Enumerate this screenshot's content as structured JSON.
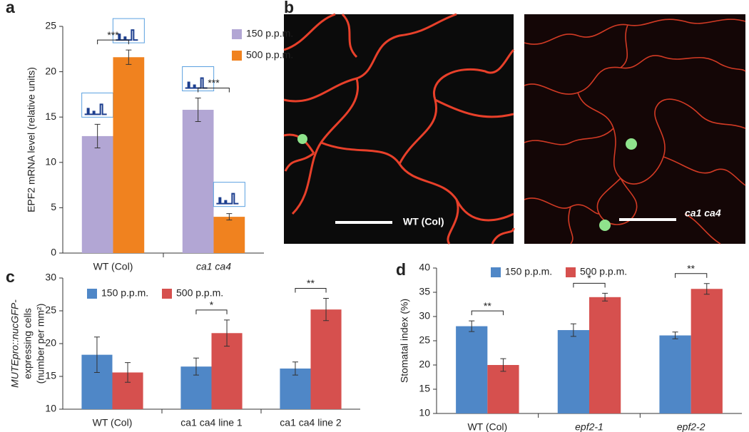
{
  "chart_data": [
    {
      "type": "bar",
      "panel": "a",
      "ylabel": "EPF2 mRNA level (relative units)",
      "categories": [
        "WT (Col)",
        "ca1 ca4"
      ],
      "series": [
        {
          "name": "150 p.p.m.",
          "color": "#b2a6d4",
          "values": [
            12.9,
            15.8
          ],
          "errors": [
            1.3,
            1.3
          ]
        },
        {
          "name": "500 p.p.m.",
          "color": "#f0821f",
          "values": [
            21.6,
            4.0
          ],
          "errors": [
            0.8,
            0.35
          ]
        }
      ],
      "significance": [
        "***",
        "***"
      ],
      "ylim": [
        0,
        25
      ],
      "yticks": [
        0,
        5,
        10,
        15,
        20,
        25
      ],
      "legend": "top-right"
    },
    {
      "type": "bar",
      "panel": "c",
      "ylabel": [
        "MUTEpro::nucGFP-",
        "expressing cells",
        "(number per mm²)"
      ],
      "categories": [
        "WT (Col)",
        "ca1 ca4 line 1",
        "ca1 ca4 line 2"
      ],
      "series": [
        {
          "name": "150 p.p.m.",
          "color": "#4f87c7",
          "values": [
            18.3,
            16.5,
            16.2
          ],
          "errors": [
            2.7,
            1.3,
            1.0
          ]
        },
        {
          "name": "500 p.p.m.",
          "color": "#d6504e",
          "values": [
            15.6,
            21.6,
            25.2
          ],
          "errors": [
            1.5,
            2.0,
            1.7
          ]
        }
      ],
      "significance": [
        null,
        "*",
        "**"
      ],
      "ylim": [
        10,
        30
      ],
      "yticks": [
        10,
        15,
        20,
        25,
        30
      ],
      "legend": "top"
    },
    {
      "type": "bar",
      "panel": "d",
      "ylabel": "Stomatal index (%)",
      "categories": [
        "WT (Col)",
        "epf2-1",
        "epf2-2"
      ],
      "series": [
        {
          "name": "150 p.p.m.",
          "color": "#4f87c7",
          "values": [
            28.0,
            27.2,
            26.1
          ],
          "errors": [
            1.1,
            1.3,
            0.7
          ]
        },
        {
          "name": "500 p.p.m.",
          "color": "#d6504e",
          "values": [
            20.0,
            34.0,
            35.7
          ],
          "errors": [
            1.3,
            0.8,
            1.1
          ]
        }
      ],
      "significance": [
        "**",
        "*",
        "**"
      ],
      "ylim": [
        10,
        40
      ],
      "yticks": [
        10,
        15,
        20,
        25,
        30,
        35,
        40
      ],
      "legend": "top"
    }
  ],
  "images": {
    "panel": "b",
    "labels": [
      "WT (Col)",
      "ca1 ca4"
    ]
  }
}
